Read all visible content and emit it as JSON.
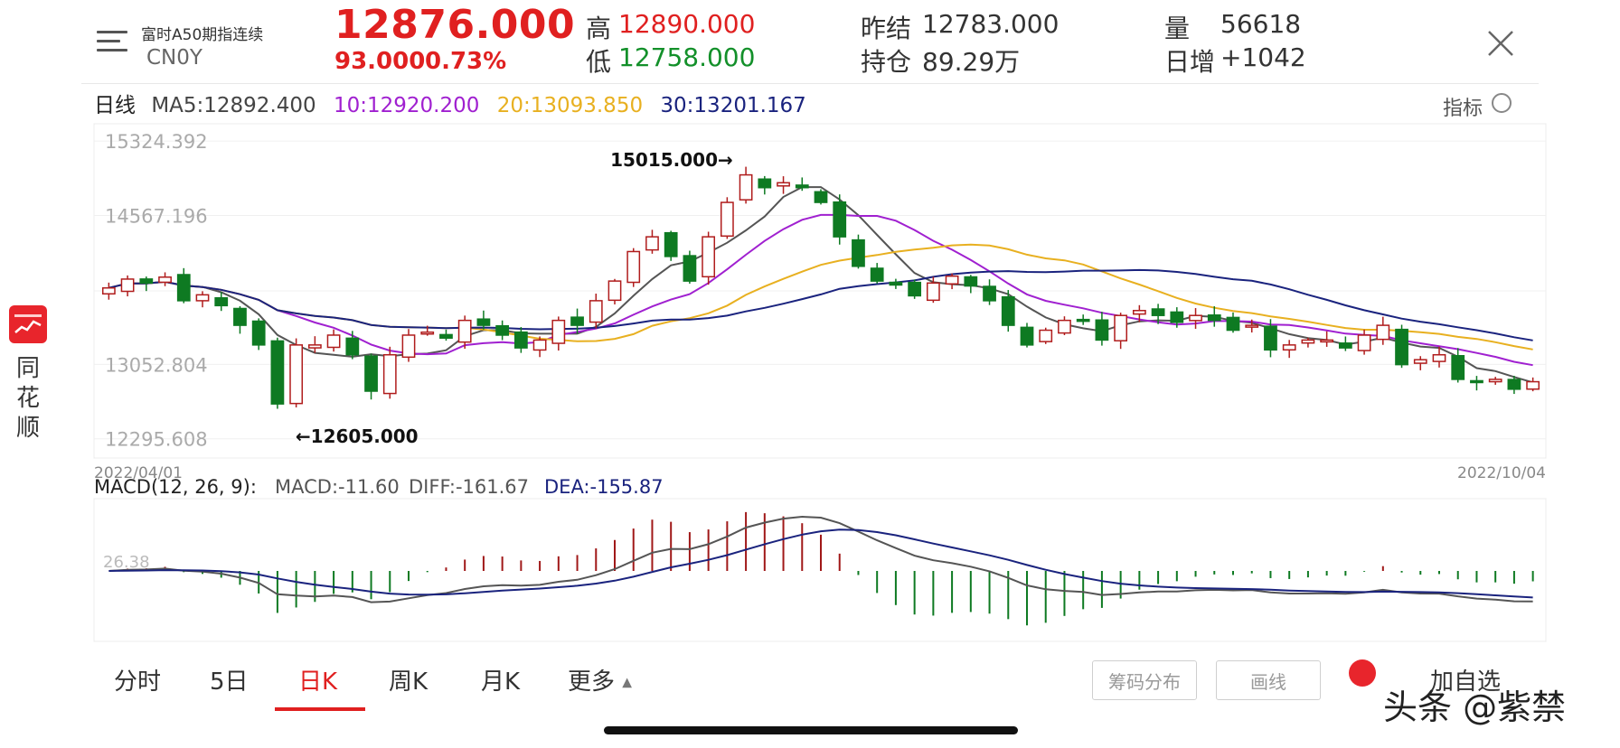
{
  "header": {
    "instrument_name": "富时A50期指连续",
    "code": "CN0Y",
    "price": "12876.000",
    "change": "93.000",
    "change_pct": "0.73%",
    "high_label": "高",
    "high": "12890.000",
    "low_label": "低",
    "low": "12758.000",
    "prev_settle_label": "昨结",
    "prev_settle": "12783.000",
    "open_interest_label": "持仓",
    "open_interest": "89.29万",
    "volume_label": "量",
    "volume": "56618",
    "daily_add_label": "日增",
    "daily_add": "+1042"
  },
  "legend": {
    "period": "日线",
    "ma5": "MA5:12892.400",
    "ma10": "10:12920.200",
    "ma20": "20:13093.850",
    "ma30": "30:13201.167",
    "indicator_label": "指标"
  },
  "sidebar": {
    "app_name_1": "同",
    "app_name_2": "花",
    "app_name_3": "顺"
  },
  "colors": {
    "up": "#b01c1c",
    "down": "#0e7a22",
    "ma5": "#555555",
    "ma10": "#a020d0",
    "ma20": "#e8b020",
    "ma30": "#1a237e"
  },
  "chart_data": [
    {
      "type": "candlestick",
      "title": "",
      "yticks": [
        "15324.392",
        "14567.196",
        "13052.804",
        "12295.608"
      ],
      "ylim": [
        12100,
        15500
      ],
      "x_start_label": "2022/04/01",
      "x_end_label": "2022/10/04",
      "annotations": [
        {
          "text": "15015.000→",
          "value": 15015
        },
        {
          "text": "←12605.000",
          "value": 12605
        }
      ],
      "close_path": [
        13830,
        13920,
        13880,
        13940,
        13700,
        13760,
        13650,
        13450,
        13250,
        12650,
        13250,
        13250,
        13350,
        13150,
        12780,
        13150,
        13350,
        13380,
        13320,
        13500,
        13450,
        13350,
        13220,
        13300,
        13500,
        13450,
        13700,
        13900,
        14200,
        14350,
        14150,
        13900,
        14350,
        14700,
        14980,
        14850,
        14900,
        14850,
        14700,
        14350,
        14050,
        13900,
        13860,
        13750,
        13880,
        13950,
        13850,
        13700,
        13450,
        13250,
        13400,
        13500,
        13500,
        13300,
        13550,
        13600,
        13550,
        13480,
        13550,
        13500,
        13400,
        13450,
        13200,
        13250,
        13300,
        13300,
        13220,
        13350,
        13450,
        13050,
        13100,
        13150,
        12900,
        12870,
        12900,
        12800,
        12876
      ]
    },
    {
      "type": "line",
      "title": "MACD(12, 26, 9):",
      "series_labels": [
        "MACD:-11.60",
        "DIFF:-161.67",
        "DEA:-155.87"
      ],
      "ytick": "26.38"
    }
  ],
  "tabs": [
    "分时",
    "5日",
    "日K",
    "周K",
    "月K",
    "更多"
  ],
  "buttons": {
    "chip_distribution": "筹码分布",
    "draw_line": "画线",
    "add_favorite": "加自选"
  },
  "watermark": "头条 @紫禁"
}
